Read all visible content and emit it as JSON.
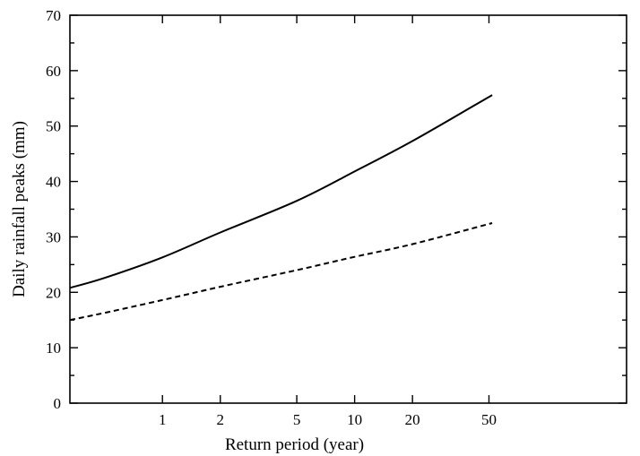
{
  "chart_data": {
    "type": "line",
    "title": "",
    "xlabel": "Return period (year)",
    "ylabel": "Daily rainfall peaks (mm)",
    "xscale": "log",
    "x_ticks": [
      1,
      2,
      5,
      10,
      20,
      50
    ],
    "x_tick_labels": [
      "1",
      "2",
      "5",
      "10",
      "20",
      "50"
    ],
    "y_ticks": [
      0,
      10,
      20,
      30,
      40,
      50,
      60,
      70
    ],
    "y_tick_labels": [
      "0",
      "10",
      "20",
      "30",
      "40",
      "50",
      "60",
      "70"
    ],
    "xlim": [
      0.33,
      260
    ],
    "ylim": [
      0,
      70
    ],
    "grid": false,
    "series": [
      {
        "style": "solid",
        "color": "#000000",
        "x": [
          0.33,
          0.5,
          1,
          2,
          5,
          10,
          20,
          52
        ],
        "y": [
          20.8,
          22.6,
          26.3,
          30.8,
          36.5,
          41.8,
          47.3,
          55.6
        ]
      },
      {
        "style": "dashed",
        "color": "#000000",
        "x": [
          0.33,
          0.5,
          1,
          2,
          5,
          10,
          20,
          52
        ],
        "y": [
          15.0,
          16.3,
          18.6,
          21.0,
          24.0,
          26.4,
          28.7,
          32.5
        ]
      }
    ]
  }
}
